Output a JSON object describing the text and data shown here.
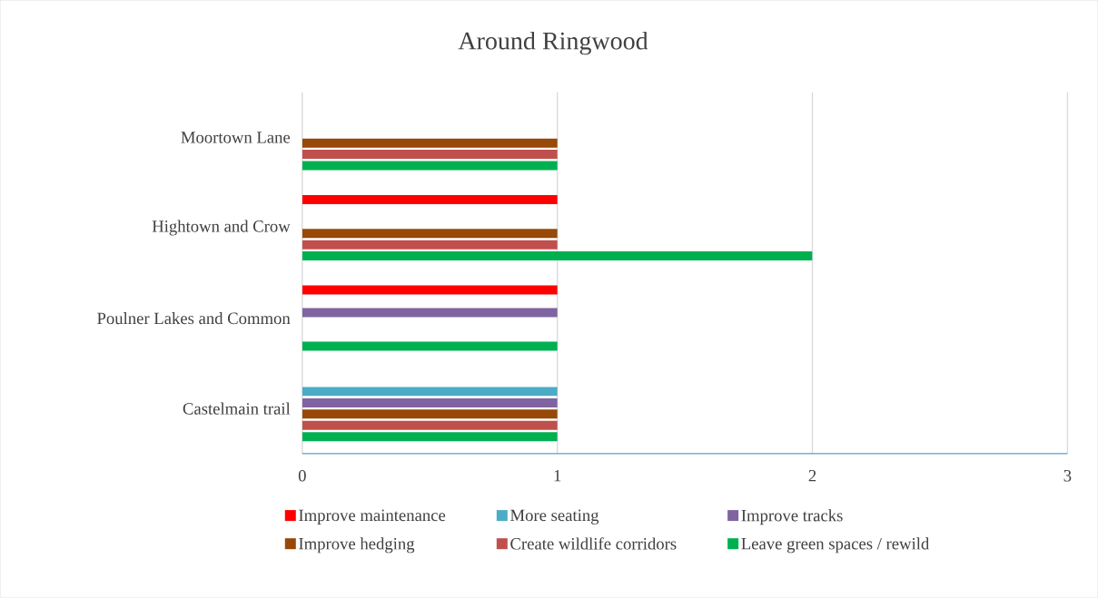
{
  "chart_data": {
    "type": "bar",
    "orientation": "horizontal",
    "title": "Around Ringwood",
    "categories": [
      "Moortown Lane",
      "Hightown and Crow",
      "Poulner Lakes and Common",
      "Castelmain trail"
    ],
    "series": [
      {
        "name": "Improve maintenance",
        "color": "#ff0000",
        "values": [
          null,
          1,
          1,
          null
        ]
      },
      {
        "name": "More seating",
        "color": "#4bacc6",
        "values": [
          null,
          null,
          null,
          1
        ]
      },
      {
        "name": "Improve tracks",
        "color": "#8064a2",
        "values": [
          null,
          null,
          1,
          1
        ]
      },
      {
        "name": "Improve hedging",
        "color": "#984807",
        "values": [
          1,
          1,
          null,
          1
        ]
      },
      {
        "name": "Create wildlife corridors",
        "color": "#c0504d",
        "values": [
          1,
          1,
          null,
          1
        ]
      },
      {
        "name": "Leave green spaces / rewild",
        "color": "#00b050",
        "values": [
          1,
          2,
          1,
          1
        ]
      }
    ],
    "xlim": [
      0,
      3
    ],
    "xticks": [
      0,
      1,
      2,
      3
    ],
    "grid": "x",
    "legend": "bottom"
  }
}
